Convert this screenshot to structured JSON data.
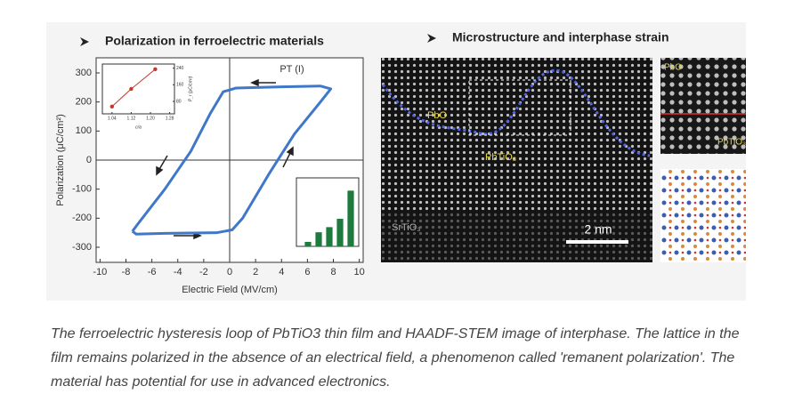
{
  "chart_data": [
    {
      "type": "line",
      "title": "Polarization in ferroelectric materials",
      "x_label": "Electric Field (MV/cm)",
      "y_label": "Polarization (μC/cm²)",
      "annotation": "PT (I)",
      "x": [
        -7.5,
        -7,
        -5,
        -3,
        -1.5,
        -0.5,
        0.5,
        4,
        7,
        7.8,
        7,
        5,
        3,
        1,
        0.2,
        -1,
        -5,
        -7.2,
        -7.5
      ],
      "values": [
        -245,
        -215,
        -100,
        30,
        160,
        235,
        248,
        252,
        255,
        245,
        200,
        90,
        -50,
        -200,
        -240,
        -250,
        -252,
        -255,
        -245
      ],
      "color": "#3f78c8",
      "xlim": [
        -10.3,
        10.3
      ],
      "ylim": [
        -352,
        352
      ],
      "xticks": [
        -10,
        -8,
        -6,
        -4,
        -2,
        0,
        2,
        4,
        6,
        8,
        10
      ],
      "yticks": [
        -300,
        -200,
        -100,
        0,
        100,
        200,
        300
      ]
    },
    {
      "type": "line",
      "x_label": "c/a",
      "y_label": "P_r (μC/cm²)",
      "x": [
        1.04,
        1.12,
        1.22
      ],
      "values": [
        55,
        140,
        235
      ],
      "color": "#c0392b",
      "xlim": [
        1.0,
        1.3
      ],
      "ylim": [
        20,
        260
      ],
      "xticks": [
        1.04,
        1.12,
        {
          "value": 1.2,
          "label": "1.20"
        },
        1.28
      ],
      "yticks": [
        80,
        160,
        240
      ]
    },
    {
      "type": "bar",
      "categories": [
        null,
        null,
        null,
        null,
        null
      ],
      "values": [
        0.07,
        0.22,
        0.3,
        0.43,
        0.87
      ],
      "color": "#1f7a3e",
      "ylim": [
        0,
        1
      ]
    }
  ],
  "microscopy": {
    "title": "Microstructure and interphase strain",
    "labels": [
      "PbO",
      "PbTiO₃",
      "SrTiO₃"
    ],
    "scale_bar": "2 nm",
    "inset_labels": [
      "PbO",
      "PbTiO₃"
    ]
  },
  "caption": "The ferroelectric hysteresis loop of PbTiO3 thin film and HAADF-STEM image of interphase. The lattice in the film remains polarized in the absence of an electrical field, a phenomenon called 'remanent polarization'. The material has potential for use in advanced electronics."
}
